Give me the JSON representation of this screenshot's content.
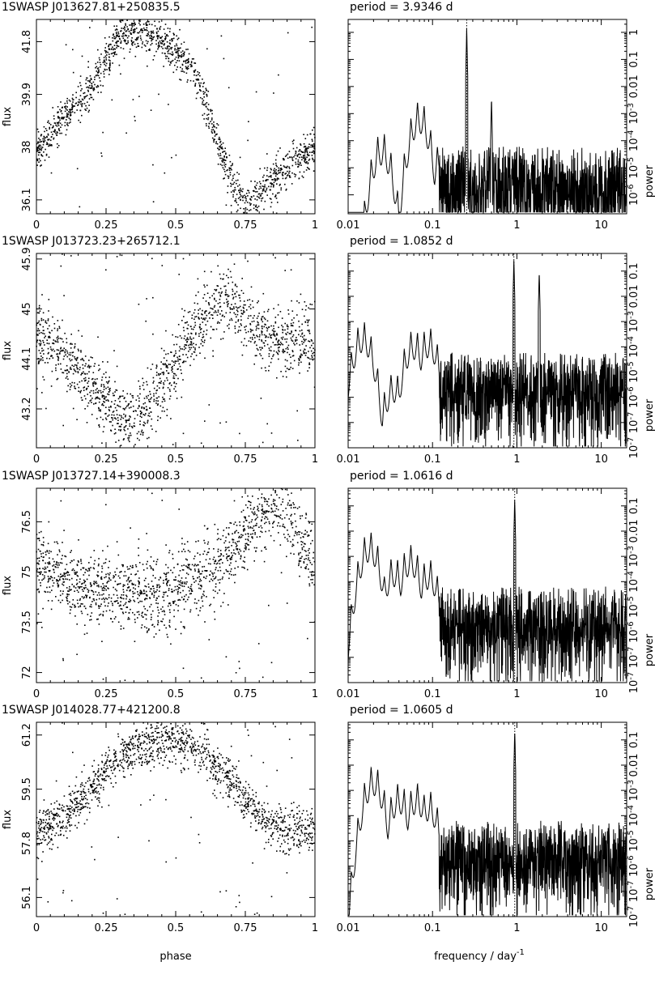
{
  "chart_data": [
    {
      "type": "scatter",
      "title": "1SWASP J013627.81+250835.5",
      "xlabel": "",
      "ylabel": "flux",
      "xlim": [
        0,
        1
      ],
      "ylim": [
        35.6,
        42.6
      ],
      "x_ticks": [
        "0",
        "0.25",
        "0.5",
        "0.75",
        "1"
      ],
      "y_ticks": [
        "36.1",
        "38",
        "39.9",
        "41.8"
      ],
      "curve": {
        "phase": [
          0,
          0.1,
          0.2,
          0.3,
          0.35,
          0.4,
          0.5,
          0.55,
          0.6,
          0.65,
          0.7,
          0.75,
          0.8,
          0.85,
          0.9,
          1.0
        ],
        "flux": [
          37.9,
          39.0,
          40.2,
          41.9,
          42.2,
          42.1,
          41.5,
          41.0,
          39.8,
          38.2,
          36.8,
          36.0,
          36.3,
          36.8,
          37.2,
          37.9
        ]
      },
      "scatter_sd": 0.35
    },
    {
      "type": "line",
      "title": "period =    3.9346  d",
      "xlabel": "",
      "ylabel": "power",
      "x_scale": "log",
      "y_scale": "log",
      "xlim": [
        0.01,
        20
      ],
      "ylim": [
        2e-07,
        3
      ],
      "x_ticks": [
        "0.01",
        "0.1",
        "1",
        "10"
      ],
      "y_ticks": [
        "10^-6",
        "10^-5",
        "10^-4",
        "10^-3",
        "0.01",
        "0.1",
        "1"
      ],
      "peak_frequency": 0.2542,
      "lobes": [
        {
          "f": 0.025,
          "p": 0.0002
        },
        {
          "f": 0.07,
          "p": 0.003
        },
        {
          "f": 0.13,
          "p": 0.0001
        },
        {
          "f": 0.2542,
          "p": 1.5
        },
        {
          "f": 0.5,
          "p": 0.004
        }
      ]
    },
    {
      "type": "scatter",
      "title": "1SWASP J013723.23+265712.1",
      "xlabel": "",
      "ylabel": "flux",
      "xlim": [
        0,
        1
      ],
      "ylim": [
        42.5,
        46.0
      ],
      "x_ticks": [
        "0",
        "0.25",
        "0.5",
        "0.75",
        "1"
      ],
      "y_ticks": [
        "43.2",
        "44.1",
        "45",
        "45.9"
      ],
      "curve": {
        "phase": [
          0,
          0.1,
          0.2,
          0.3,
          0.35,
          0.4,
          0.5,
          0.6,
          0.65,
          0.7,
          0.75,
          0.8,
          0.9,
          1.0
        ],
        "flux": [
          44.5,
          44.2,
          43.6,
          43.1,
          43.0,
          43.2,
          44.0,
          44.8,
          45.2,
          45.1,
          44.8,
          44.5,
          44.4,
          44.5
        ]
      },
      "scatter_sd": 0.3
    },
    {
      "type": "line",
      "title": "period =    1.0852  d",
      "xlabel": "",
      "ylabel": "power",
      "x_scale": "log",
      "y_scale": "log",
      "xlim": [
        0.01,
        20
      ],
      "ylim": [
        1e-08,
        0.5
      ],
      "x_ticks": [
        "0.01",
        "0.1",
        "1",
        "10"
      ],
      "y_ticks": [
        "10^-7",
        "10^-6",
        "10^-5",
        "10^-4",
        "10^-3",
        "0.01",
        "0.1"
      ],
      "peak_frequency": 0.9215,
      "lobes": [
        {
          "f": 0.015,
          "p": 0.001
        },
        {
          "f": 0.035,
          "p": 1e-05
        },
        {
          "f": 0.06,
          "p": 0.0005
        },
        {
          "f": 0.09,
          "p": 0.0006
        },
        {
          "f": 0.9215,
          "p": 0.3
        },
        {
          "f": 1.84,
          "p": 0.1
        }
      ]
    },
    {
      "type": "scatter",
      "title": "1SWASP J013727.14+390008.3",
      "xlabel": "",
      "ylabel": "flux",
      "xlim": [
        0,
        1
      ],
      "ylim": [
        71.7,
        77.5
      ],
      "x_ticks": [
        "0",
        "0.25",
        "0.5",
        "0.75",
        "1"
      ],
      "y_ticks": [
        "72",
        "73.5",
        "75",
        "76.5"
      ],
      "curve": {
        "phase": [
          0,
          0.1,
          0.2,
          0.3,
          0.4,
          0.5,
          0.6,
          0.7,
          0.8,
          0.85,
          0.9,
          1.0
        ],
        "flux": [
          75.2,
          74.8,
          74.5,
          74.4,
          74.3,
          74.4,
          74.8,
          75.6,
          76.6,
          76.9,
          76.6,
          75.2
        ]
      },
      "scatter_sd": 0.55
    },
    {
      "type": "line",
      "title": "period =    1.0616  d",
      "xlabel": "",
      "ylabel": "power",
      "x_scale": "log",
      "y_scale": "log",
      "xlim": [
        0.01,
        20
      ],
      "ylim": [
        1e-08,
        0.5
      ],
      "x_ticks": [
        "0.01",
        "0.1",
        "1",
        "10"
      ],
      "y_ticks": [
        "10^-7",
        "10^-6",
        "10^-5",
        "10^-4",
        "10^-3",
        "0.01",
        "0.1"
      ],
      "peak_frequency": 0.942,
      "lobes": [
        {
          "f": 0.018,
          "p": 0.01
        },
        {
          "f": 0.035,
          "p": 0.001
        },
        {
          "f": 0.055,
          "p": 0.003
        },
        {
          "f": 0.09,
          "p": 0.0008
        },
        {
          "f": 0.18,
          "p": 0.003
        },
        {
          "f": 0.942,
          "p": 0.2
        }
      ]
    },
    {
      "type": "scatter",
      "title": "1SWASP J014028.77+421200.8",
      "xlabel": "phase",
      "ylabel": "flux",
      "xlim": [
        0,
        1
      ],
      "ylim": [
        55.5,
        61.6
      ],
      "x_ticks": [
        "0",
        "0.25",
        "0.5",
        "0.75",
        "1"
      ],
      "y_ticks": [
        "56.1",
        "57.8",
        "59.5",
        "61.2"
      ],
      "curve": {
        "phase": [
          0,
          0.1,
          0.2,
          0.3,
          0.4,
          0.5,
          0.6,
          0.7,
          0.8,
          0.9,
          1.0
        ],
        "flux": [
          58.2,
          58.6,
          59.6,
          60.5,
          61.0,
          61.0,
          60.6,
          59.8,
          58.6,
          58.2,
          58.2
        ]
      },
      "scatter_sd": 0.35
    },
    {
      "type": "line",
      "title": "period =    1.0605  d",
      "xlabel": "frequency / day^-1",
      "ylabel": "power",
      "x_scale": "log",
      "y_scale": "log",
      "xlim": [
        0.01,
        20
      ],
      "ylim": [
        1e-08,
        0.5
      ],
      "x_ticks": [
        "0.01",
        "0.1",
        "1",
        "10"
      ],
      "y_ticks": [
        "10^-7",
        "10^-6",
        "10^-5",
        "10^-4",
        "10^-3",
        "0.01",
        "0.1"
      ],
      "peak_frequency": 0.943,
      "lobes": [
        {
          "f": 0.02,
          "p": 0.01
        },
        {
          "f": 0.04,
          "p": 0.002
        },
        {
          "f": 0.065,
          "p": 0.002
        },
        {
          "f": 0.09,
          "p": 0.001
        },
        {
          "f": 0.943,
          "p": 0.25
        }
      ]
    }
  ]
}
